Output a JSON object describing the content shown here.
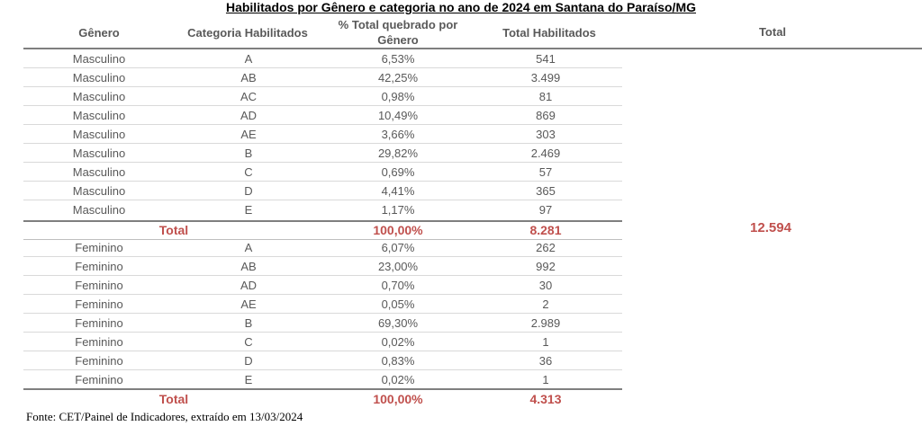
{
  "title": "Habilitados por Gênero e categoria no ano de 2024 em Santana do Paraíso/MG",
  "headers": {
    "genero": "Gênero",
    "categoria": "Categoria Habilitados",
    "percent_line1": "% Total quebrado por",
    "percent_line2": "Gênero",
    "total_habilitados": "Total Habilitados",
    "total": "Total"
  },
  "masculino_rows": [
    {
      "genero": "Masculino",
      "categoria": "A",
      "percent": "6,53%",
      "total": "541"
    },
    {
      "genero": "Masculino",
      "categoria": "AB",
      "percent": "42,25%",
      "total": "3.499"
    },
    {
      "genero": "Masculino",
      "categoria": "AC",
      "percent": "0,98%",
      "total": "81"
    },
    {
      "genero": "Masculino",
      "categoria": "AD",
      "percent": "10,49%",
      "total": "869"
    },
    {
      "genero": "Masculino",
      "categoria": "AE",
      "percent": "3,66%",
      "total": "303"
    },
    {
      "genero": "Masculino",
      "categoria": "B",
      "percent": "29,82%",
      "total": "2.469"
    },
    {
      "genero": "Masculino",
      "categoria": "C",
      "percent": "0,69%",
      "total": "57"
    },
    {
      "genero": "Masculino",
      "categoria": "D",
      "percent": "4,41%",
      "total": "365"
    },
    {
      "genero": "Masculino",
      "categoria": "E",
      "percent": "1,17%",
      "total": "97"
    }
  ],
  "masculino_total": {
    "label": "Total",
    "percent": "100,00%",
    "total": "8.281"
  },
  "feminino_rows": [
    {
      "genero": "Feminino",
      "categoria": "A",
      "percent": "6,07%",
      "total": "262"
    },
    {
      "genero": "Feminino",
      "categoria": "AB",
      "percent": "23,00%",
      "total": "992"
    },
    {
      "genero": "Feminino",
      "categoria": "AD",
      "percent": "0,70%",
      "total": "30"
    },
    {
      "genero": "Feminino",
      "categoria": "AE",
      "percent": "0,05%",
      "total": "2"
    },
    {
      "genero": "Feminino",
      "categoria": "B",
      "percent": "69,30%",
      "total": "2.989"
    },
    {
      "genero": "Feminino",
      "categoria": "C",
      "percent": "0,02%",
      "total": "1"
    },
    {
      "genero": "Feminino",
      "categoria": "D",
      "percent": "0,83%",
      "total": "36"
    },
    {
      "genero": "Feminino",
      "categoria": "E",
      "percent": "0,02%",
      "total": "1"
    }
  ],
  "feminino_total": {
    "label": "Total",
    "percent": "100,00%",
    "total": "4.313"
  },
  "grand_total": "12.594",
  "source": "Fonte: CET/Painel de Indicadores, extraído em 13/03/2024",
  "colors": {
    "total_red": "#c0504d",
    "text_gray": "#595959",
    "border": "#7f7f7f"
  }
}
